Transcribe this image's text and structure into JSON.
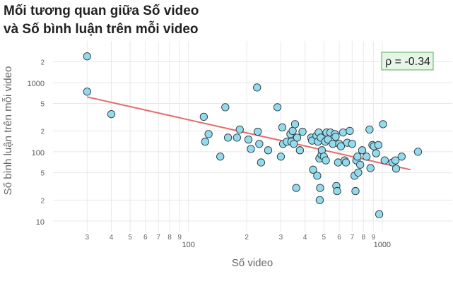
{
  "chart_data": {
    "type": "scatter",
    "title_lines": [
      "Mối tương quan giữa Số video",
      "và Số bình luận trên mỗi video"
    ],
    "xlabel": "Số video",
    "ylabel": "Số bình luận trên mỗi video",
    "x_scale": "log",
    "y_scale": "log",
    "xlim": [
      20,
      2300
    ],
    "ylim": [
      7,
      4000
    ],
    "x_major_ticks": [
      {
        "value": 100,
        "label": "100"
      },
      {
        "value": 1000,
        "label": "1000"
      }
    ],
    "x_minor_ticks": [
      {
        "value": 30,
        "label": "3"
      },
      {
        "value": 40,
        "label": "4"
      },
      {
        "value": 50,
        "label": "5"
      },
      {
        "value": 60,
        "label": "6"
      },
      {
        "value": 70,
        "label": "7"
      },
      {
        "value": 80,
        "label": "8"
      },
      {
        "value": 90,
        "label": "9"
      },
      {
        "value": 200,
        "label": "2"
      },
      {
        "value": 300,
        "label": "3"
      },
      {
        "value": 400,
        "label": "4"
      },
      {
        "value": 500,
        "label": "5"
      },
      {
        "value": 600,
        "label": "6"
      },
      {
        "value": 700,
        "label": "7"
      },
      {
        "value": 800,
        "label": "8"
      },
      {
        "value": 900,
        "label": "9"
      }
    ],
    "y_major_ticks": [
      {
        "value": 10,
        "label": "10"
      },
      {
        "value": 100,
        "label": "100"
      },
      {
        "value": 1000,
        "label": "1000"
      }
    ],
    "y_minor_ticks": [
      {
        "value": 20,
        "label": "2"
      },
      {
        "value": 50,
        "label": "5"
      },
      {
        "value": 200,
        "label": "2"
      },
      {
        "value": 500,
        "label": "5"
      },
      {
        "value": 2000,
        "label": "2"
      }
    ],
    "grid": true,
    "annotation": "ρ = -0.34",
    "annotation_position": "top-right",
    "colors": {
      "marker_fill": "#8fdcf0",
      "marker_edge": "#333333",
      "trend_line": "#ea6a6a",
      "annotation_fill": "#e6f5e6",
      "annotation_border": "#5aab5a",
      "grid": "#e8e8e8"
    },
    "trend_line": {
      "x": [
        30,
        1400
      ],
      "y": [
        620,
        55
      ]
    },
    "points": [
      {
        "x": 30,
        "y": 2400
      },
      {
        "x": 30,
        "y": 740
      },
      {
        "x": 40,
        "y": 350
      },
      {
        "x": 120,
        "y": 320
      },
      {
        "x": 122,
        "y": 140
      },
      {
        "x": 127,
        "y": 180
      },
      {
        "x": 146,
        "y": 85
      },
      {
        "x": 155,
        "y": 440
      },
      {
        "x": 160,
        "y": 160
      },
      {
        "x": 178,
        "y": 160
      },
      {
        "x": 184,
        "y": 210
      },
      {
        "x": 204,
        "y": 150
      },
      {
        "x": 210,
        "y": 110
      },
      {
        "x": 226,
        "y": 850
      },
      {
        "x": 228,
        "y": 195
      },
      {
        "x": 232,
        "y": 130
      },
      {
        "x": 237,
        "y": 70
      },
      {
        "x": 258,
        "y": 105
      },
      {
        "x": 288,
        "y": 440
      },
      {
        "x": 300,
        "y": 85
      },
      {
        "x": 305,
        "y": 225
      },
      {
        "x": 308,
        "y": 130
      },
      {
        "x": 322,
        "y": 140
      },
      {
        "x": 336,
        "y": 180
      },
      {
        "x": 340,
        "y": 140
      },
      {
        "x": 345,
        "y": 200
      },
      {
        "x": 350,
        "y": 130
      },
      {
        "x": 355,
        "y": 250
      },
      {
        "x": 360,
        "y": 30
      },
      {
        "x": 364,
        "y": 160
      },
      {
        "x": 376,
        "y": 105
      },
      {
        "x": 388,
        "y": 195
      },
      {
        "x": 430,
        "y": 160
      },
      {
        "x": 435,
        "y": 145
      },
      {
        "x": 440,
        "y": 55
      },
      {
        "x": 458,
        "y": 170
      },
      {
        "x": 462,
        "y": 45
      },
      {
        "x": 466,
        "y": 140
      },
      {
        "x": 470,
        "y": 190
      },
      {
        "x": 474,
        "y": 80
      },
      {
        "x": 476,
        "y": 20
      },
      {
        "x": 478,
        "y": 30
      },
      {
        "x": 482,
        "y": 160
      },
      {
        "x": 486,
        "y": 90
      },
      {
        "x": 488,
        "y": 105
      },
      {
        "x": 500,
        "y": 85
      },
      {
        "x": 508,
        "y": 140
      },
      {
        "x": 512,
        "y": 75
      },
      {
        "x": 516,
        "y": 190
      },
      {
        "x": 525,
        "y": 150
      },
      {
        "x": 540,
        "y": 190
      },
      {
        "x": 556,
        "y": 130
      },
      {
        "x": 570,
        "y": 180
      },
      {
        "x": 575,
        "y": 165
      },
      {
        "x": 580,
        "y": 32
      },
      {
        "x": 585,
        "y": 27
      },
      {
        "x": 592,
        "y": 70
      },
      {
        "x": 600,
        "y": 130
      },
      {
        "x": 612,
        "y": 120
      },
      {
        "x": 628,
        "y": 190
      },
      {
        "x": 640,
        "y": 75
      },
      {
        "x": 650,
        "y": 70
      },
      {
        "x": 660,
        "y": 135
      },
      {
        "x": 680,
        "y": 200
      },
      {
        "x": 700,
        "y": 130
      },
      {
        "x": 720,
        "y": 45
      },
      {
        "x": 728,
        "y": 27
      },
      {
        "x": 736,
        "y": 75
      },
      {
        "x": 745,
        "y": 85
      },
      {
        "x": 752,
        "y": 50
      },
      {
        "x": 770,
        "y": 65
      },
      {
        "x": 788,
        "y": 105
      },
      {
        "x": 830,
        "y": 85
      },
      {
        "x": 860,
        "y": 210
      },
      {
        "x": 870,
        "y": 58
      },
      {
        "x": 890,
        "y": 125
      },
      {
        "x": 906,
        "y": 120
      },
      {
        "x": 930,
        "y": 95
      },
      {
        "x": 955,
        "y": 125
      },
      {
        "x": 965,
        "y": 12.5
      },
      {
        "x": 1010,
        "y": 250
      },
      {
        "x": 1030,
        "y": 75
      },
      {
        "x": 1130,
        "y": 70
      },
      {
        "x": 1170,
        "y": 75
      },
      {
        "x": 1180,
        "y": 57
      },
      {
        "x": 1260,
        "y": 85
      },
      {
        "x": 1530,
        "y": 100
      }
    ]
  }
}
